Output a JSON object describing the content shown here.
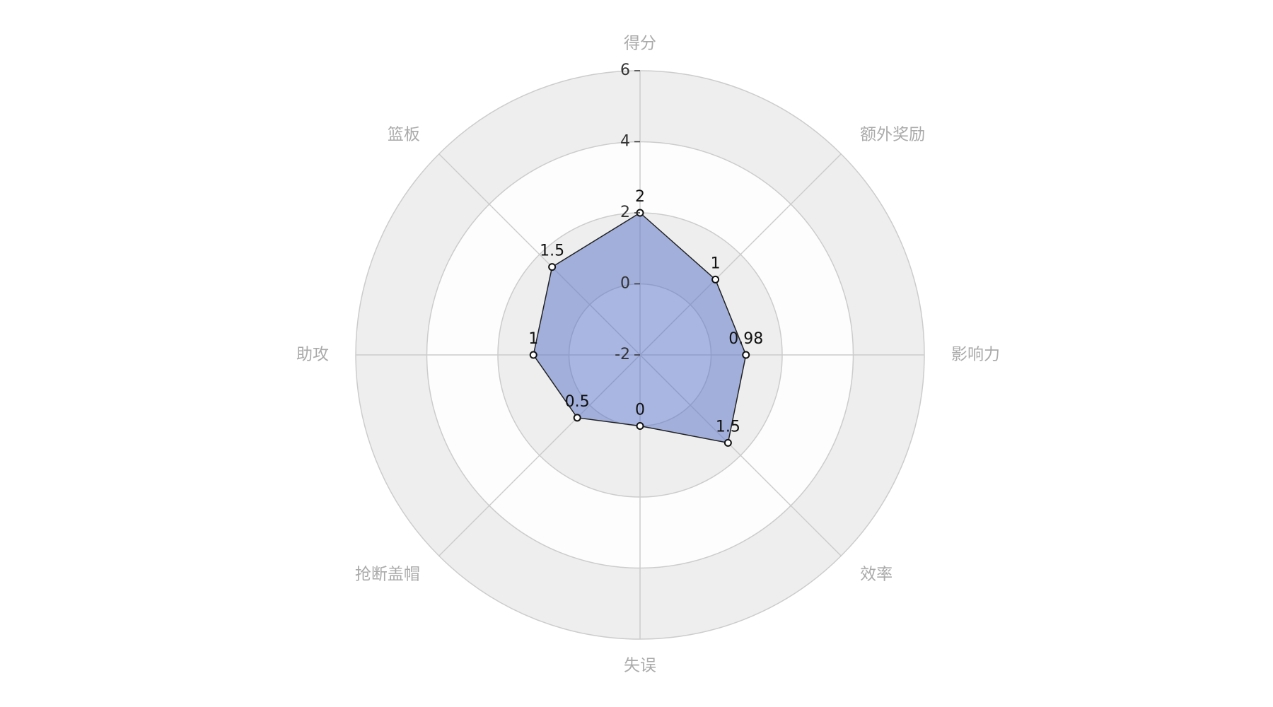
{
  "chart_data": {
    "type": "radar",
    "indicators": [
      "得分",
      "额外奖励",
      "影响力",
      "效率",
      "失误",
      "抢断盖帽",
      "助攻",
      "篮板"
    ],
    "series": [
      {
        "color": "#5470c6",
        "values": [
          2,
          1,
          0.98,
          1.5,
          0,
          0.5,
          1,
          1.5
        ]
      }
    ],
    "rlim": [
      -2,
      6
    ],
    "rticks": [
      -2,
      0,
      2,
      4,
      6
    ],
    "split_area": true
  }
}
